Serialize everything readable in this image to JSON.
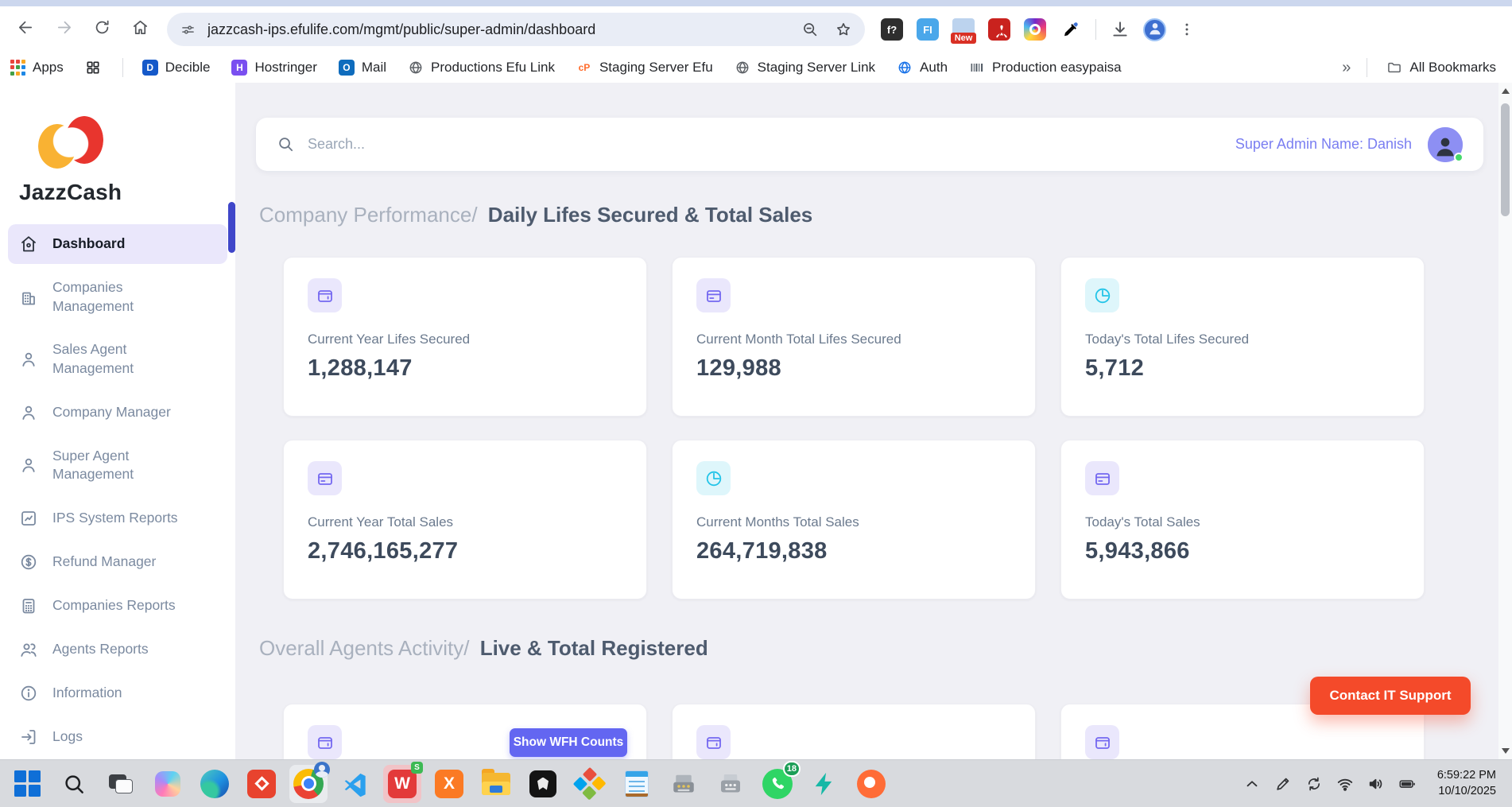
{
  "browser": {
    "url": "jazzcash-ips.efulife.com/mgmt/public/super-admin/dashboard",
    "apps_label": "Apps",
    "bookmarks": [
      {
        "label": "Decible",
        "icon": "letter",
        "letter": "D",
        "bg": "#1559c9"
      },
      {
        "label": "Hostringer",
        "icon": "letter",
        "letter": "H",
        "bg": "#7a4ff0"
      },
      {
        "label": "Mail",
        "icon": "letter",
        "letter": "O",
        "bg": "#0f6cbd"
      },
      {
        "label": "Productions Efu Link",
        "icon": "globe",
        "color": "#5f6368"
      },
      {
        "label": "Staging Server Efu",
        "icon": "letter",
        "letter": "cP",
        "bg": "transparent",
        "fg": "#ff6c2c"
      },
      {
        "label": "Staging Server Link",
        "icon": "globe",
        "color": "#5f6368"
      },
      {
        "label": "Auth",
        "icon": "globe",
        "color": "#1a73e8"
      },
      {
        "label": "Production easypaisa",
        "icon": "barcode",
        "color": "#57606a"
      }
    ],
    "overflow_chevron": "»",
    "all_bookmarks_label": "All Bookmarks",
    "extensions": [
      {
        "name": "fx-extension",
        "type": "letter",
        "text": "f?",
        "bg": "#2e2e2e",
        "fg": "#ffffff"
      },
      {
        "name": "font-identifier-extension",
        "type": "letter",
        "text": "FI",
        "bg": "#4aa7ea",
        "fg": "#ffffff"
      },
      {
        "name": "new-badge-extension",
        "type": "new",
        "text": "New"
      },
      {
        "name": "acrobat-extension",
        "type": "acrobat",
        "bg": "#c9221e"
      },
      {
        "name": "camera-extension",
        "type": "camera"
      },
      {
        "name": "eyedropper-extension",
        "type": "eyedropper"
      }
    ]
  },
  "sidebar": {
    "brand": "JazzCash",
    "items": [
      {
        "label": "Dashboard",
        "icon": "home",
        "active": true
      },
      {
        "label": "Companies Management",
        "icon": "building"
      },
      {
        "label": "Sales Agent Management",
        "icon": "user"
      },
      {
        "label": "Company Manager",
        "icon": "user"
      },
      {
        "label": "Super Agent Management",
        "icon": "user"
      },
      {
        "label": "IPS System Reports",
        "icon": "chart"
      },
      {
        "label": "Refund Manager",
        "icon": "dollar"
      },
      {
        "label": "Companies Reports",
        "icon": "calculator"
      },
      {
        "label": "Agents Reports",
        "icon": "users"
      },
      {
        "label": "Information",
        "icon": "info"
      },
      {
        "label": "Logs",
        "icon": "logout"
      }
    ]
  },
  "header": {
    "search_placeholder": "Search...",
    "admin_label": "Super Admin Name: Danish"
  },
  "sections": {
    "performance": {
      "prefix": "Company Performance/",
      "title": "Daily Lifes Secured & Total Sales"
    },
    "agents": {
      "prefix": "Overall Agents Activity/",
      "title": "Live & Total Registered",
      "wfh_button": "Show WFH Counts"
    }
  },
  "stats": {
    "cards": [
      {
        "label": "Current Year Lifes Secured",
        "value": "1,288,147",
        "icon": "wallet",
        "theme": "purple"
      },
      {
        "label": "Current Month Total Lifes Secured",
        "value": "129,988",
        "icon": "card",
        "theme": "purple"
      },
      {
        "label": "Today's Total Lifes Secured",
        "value": "5,712",
        "icon": "pie",
        "theme": "cyan"
      },
      {
        "label": "Current Year Total Sales",
        "value": "2,746,165,277",
        "icon": "card",
        "theme": "purple"
      },
      {
        "label": "Current Months Total Sales",
        "value": "264,719,838",
        "icon": "pie",
        "theme": "cyan"
      },
      {
        "label": "Today's Total Sales",
        "value": "5,943,866",
        "icon": "card",
        "theme": "purple"
      }
    ],
    "bottom_cards": [
      {
        "icon": "wallet",
        "theme": "purple",
        "has_button": true
      },
      {
        "icon": "wallet",
        "theme": "purple"
      },
      {
        "icon": "wallet",
        "theme": "purple"
      }
    ]
  },
  "support_button": "Contact IT Support",
  "colors": {
    "accent_purple": "#7468f0",
    "accent_cyan": "#23c4e8",
    "wfh_indigo": "#6366f1",
    "support_red": "#f44a2a",
    "active_nav_bg": "#eae7fb",
    "accent_bar": "#3f46c9"
  },
  "taskbar": {
    "apps": [
      {
        "app": "start"
      },
      {
        "app": "winsearch"
      },
      {
        "app": "taskview"
      },
      {
        "app": "copilot"
      },
      {
        "app": "edge"
      },
      {
        "app": "redapp"
      },
      {
        "app": "chrome",
        "active": true
      },
      {
        "app": "vscode"
      },
      {
        "app": "wps",
        "active": "pink"
      },
      {
        "app": "xampp"
      },
      {
        "app": "explorer"
      },
      {
        "app": "darkapp"
      },
      {
        "app": "diamond"
      },
      {
        "app": "notepad"
      },
      {
        "app": "machine1"
      },
      {
        "app": "machine2"
      },
      {
        "app": "whatsapp"
      },
      {
        "app": "flash"
      },
      {
        "app": "postman"
      }
    ],
    "whatsapp_badge": "18",
    "wps_letter": "W",
    "wps_badge": "S",
    "xampp_letter": "X",
    "time": "6:59:22 PM",
    "date": "10/10/2025"
  }
}
